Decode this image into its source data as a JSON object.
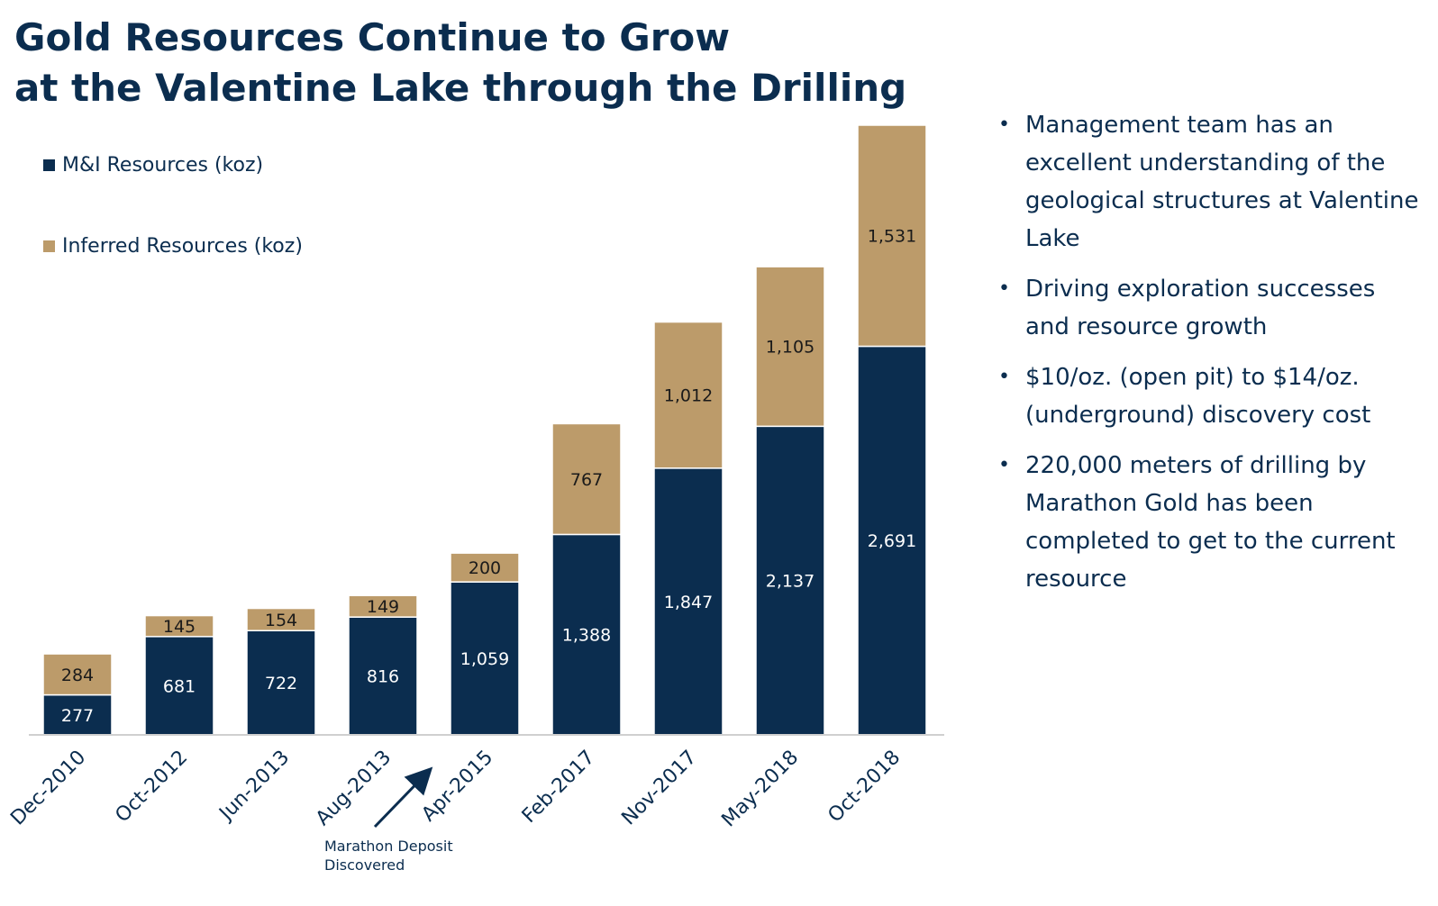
{
  "title": {
    "line1": "Gold Resources Continue to Grow",
    "line2": "at the Valentine Lake through the Drilling"
  },
  "bullets": [
    "Management team has an excellent understanding of the geological structures at Valentine Lake",
    "Driving exploration successes and resource growth",
    "$10/oz. (open pit) to $14/oz. (underground) discovery cost",
    "220,000 meters of drilling by Marathon Gold  has been completed to get to the current resource"
  ],
  "colors": {
    "mi": "#0b2d4f",
    "inferred": "#bc9b6a",
    "text": "#0b2d4f"
  },
  "chart_data": {
    "type": "bar",
    "stacked": true,
    "categories": [
      "Dec-2010",
      "Oct-2012",
      "Jun-2013",
      "Aug-2013",
      "Apr-2015",
      "Feb-2017",
      "Nov-2017",
      "May-2018",
      "Oct-2018"
    ],
    "series": [
      {
        "name": "M&I Resources (koz)",
        "values": [
          277,
          681,
          722,
          816,
          1059,
          1388,
          1847,
          2137,
          2691
        ],
        "labels": [
          "277",
          "681",
          "722",
          "816",
          "1,059",
          "1,388",
          "1,847",
          "2,137",
          "2,691"
        ]
      },
      {
        "name": "Inferred Resources (koz)",
        "values": [
          284,
          145,
          154,
          149,
          200,
          767,
          1012,
          1105,
          1531
        ],
        "labels": [
          "284",
          "145",
          "154",
          "149",
          "200",
          "767",
          "1,012",
          "1,105",
          "1,531"
        ]
      }
    ],
    "ylim": [
      0,
      4222
    ],
    "legend_position": "top-left",
    "annotation": {
      "text_line1": "Marathon Deposit",
      "text_line2": "Discovered",
      "between": [
        "Aug-2013",
        "Apr-2015"
      ]
    }
  }
}
